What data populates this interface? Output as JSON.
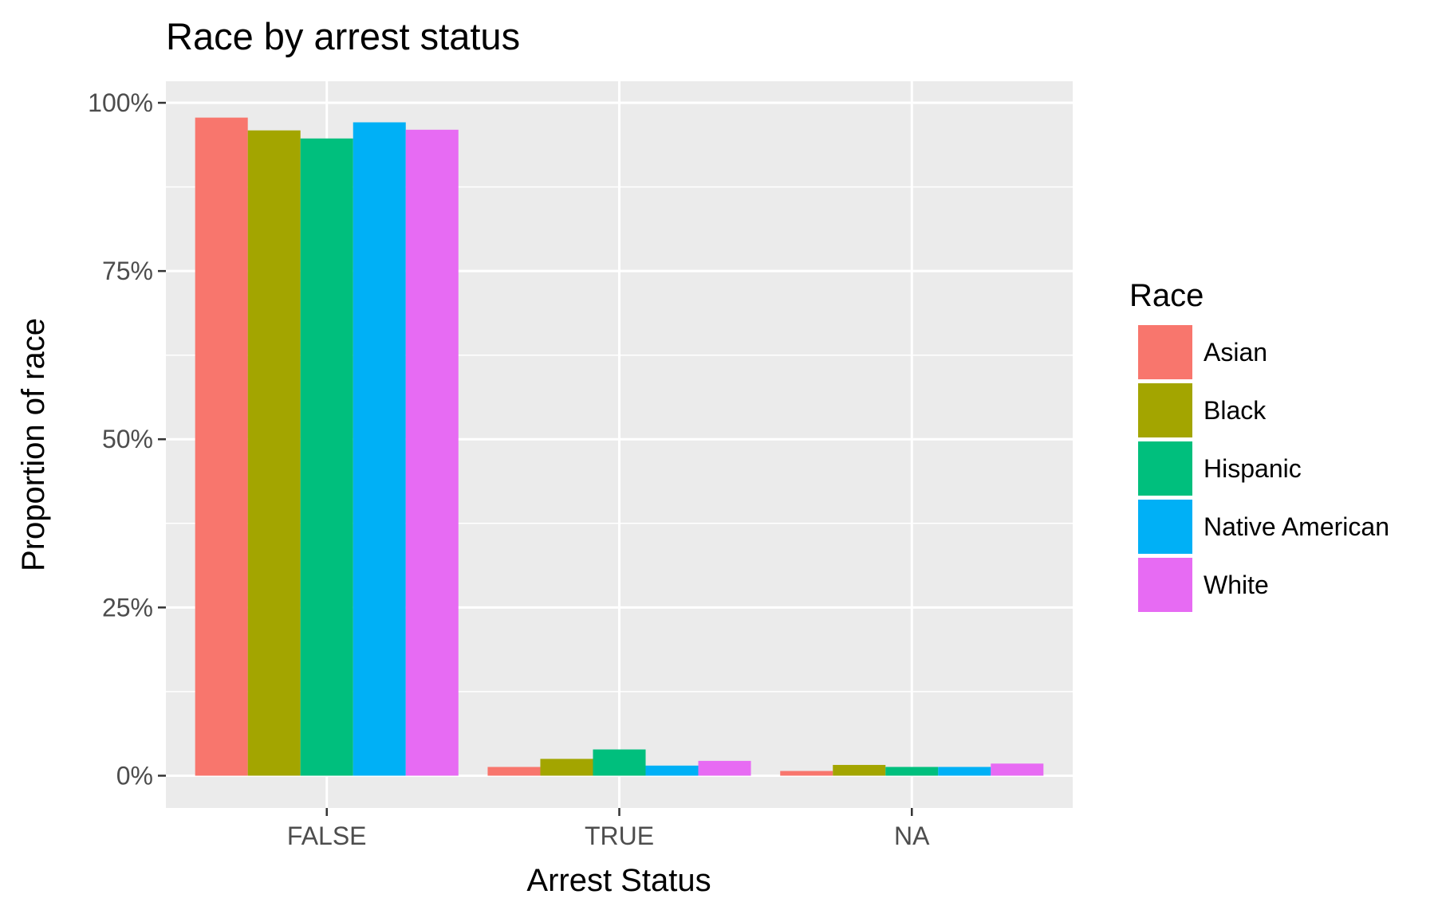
{
  "chart_data": {
    "type": "bar",
    "title": "Race by arrest status",
    "xlabel": "Arrest Status",
    "ylabel": "Proportion of race",
    "categories": [
      "FALSE",
      "TRUE",
      "NA"
    ],
    "series": [
      {
        "name": "Asian",
        "color": "#F8766D",
        "values": [
          0.978,
          0.013,
          0.007
        ]
      },
      {
        "name": "Black",
        "color": "#A3A500",
        "values": [
          0.959,
          0.025,
          0.016
        ]
      },
      {
        "name": "Hispanic",
        "color": "#00BF7D",
        "values": [
          0.947,
          0.039,
          0.013
        ]
      },
      {
        "name": "Native American",
        "color": "#00B0F6",
        "values": [
          0.971,
          0.015,
          0.013
        ]
      },
      {
        "name": "White",
        "color": "#E76BF3",
        "values": [
          0.96,
          0.022,
          0.018
        ]
      }
    ],
    "ylim": [
      -0.048,
      1.032
    ],
    "yticks": [
      0,
      0.25,
      0.5,
      0.75,
      1.0
    ],
    "ytick_labels": [
      "0%",
      "25%",
      "50%",
      "75%",
      "100%"
    ],
    "legend": {
      "title": "Race",
      "position": "right"
    },
    "panel_background": "#EBEBEB",
    "grid": true
  }
}
